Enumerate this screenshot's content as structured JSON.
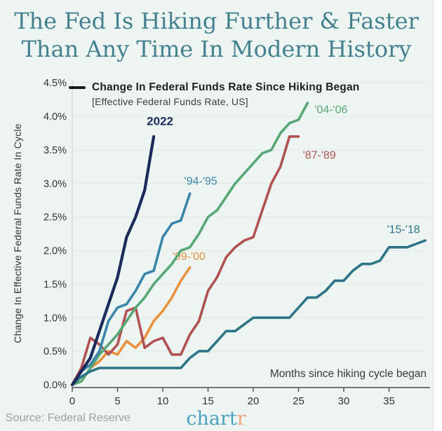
{
  "title": {
    "line1": "The Fed Is Hiking Further & Faster",
    "line2": "Than Any Time In Modern History",
    "color": "#45808f"
  },
  "legend": {
    "marker_color": "#181818",
    "label": "Change In Federal Funds Rate Since Hiking Began",
    "sublabel": "[Effective Federal Funds Rate, US]"
  },
  "footer": {
    "source": "Source: Federal Reserve",
    "logo_main": "chart",
    "logo_accent": "r",
    "logo_main_color": "#4d9fc0",
    "logo_accent_color": "#f2a479"
  },
  "chart_data": {
    "type": "line",
    "title": "",
    "xlabel": "Months since hiking cycle began",
    "ylabel": "Change In Effective Federal Funds Rate In Cycle",
    "x_unit": "months since hiking began",
    "y_unit": "percentage points",
    "xlim": [
      0,
      39.5
    ],
    "ylim": [
      0,
      4.5
    ],
    "x_ticks": [
      0,
      5,
      10,
      15,
      20,
      25,
      30,
      35
    ],
    "y_ticks": [
      "0.0%",
      "0.5%",
      "1.0%",
      "1.5%",
      "2.0%",
      "2.5%",
      "3.0%",
      "3.5%",
      "4.0%",
      "4.5%"
    ],
    "grid": "horizontal",
    "background": "#edf5f2",
    "gridline_color": "#e3ebe8",
    "axis_color": "#4a4a4a",
    "series": [
      {
        "name": "'99-'00",
        "color": "#e8913f",
        "label_x": 12.9,
        "label_y": 1.86,
        "label_bold": false,
        "values": [
          0,
          0.05,
          0.25,
          0.35,
          0.5,
          0.45,
          0.65,
          0.55,
          0.7,
          0.95,
          1.1,
          1.3,
          1.55,
          1.75
        ]
      },
      {
        "name": "'87-'89",
        "color": "#b05152",
        "label_x": 27.3,
        "label_y": 3.37,
        "label_bold": false,
        "values": [
          0,
          0.25,
          0.7,
          0.6,
          0.45,
          0.6,
          1.1,
          1.15,
          0.55,
          0.65,
          0.7,
          0.45,
          0.45,
          0.75,
          0.95,
          1.4,
          1.6,
          1.9,
          2.05,
          2.15,
          2.2,
          2.6,
          3.0,
          3.25,
          3.7,
          3.7
        ]
      },
      {
        "name": "'04-'06",
        "color": "#58a877",
        "label_x": 28.6,
        "label_y": 4.05,
        "label_bold": false,
        "values": [
          0,
          0.05,
          0.25,
          0.45,
          0.6,
          0.75,
          0.95,
          1.15,
          1.3,
          1.5,
          1.65,
          1.8,
          2.0,
          2.05,
          2.25,
          2.5,
          2.6,
          2.8,
          3.0,
          3.15,
          3.3,
          3.45,
          3.5,
          3.75,
          3.9,
          3.95,
          4.2
        ]
      },
      {
        "name": "'94-'95",
        "color": "#3c85aa",
        "label_x": 14.2,
        "label_y": 2.98,
        "label_bold": false,
        "values": [
          0,
          0.2,
          0.3,
          0.5,
          0.95,
          1.15,
          1.2,
          1.4,
          1.65,
          1.7,
          2.2,
          2.4,
          2.45,
          2.85
        ]
      },
      {
        "name": "'15-'18",
        "color": "#2e7487",
        "label_x": 36.6,
        "label_y": 2.26,
        "label_bold": false,
        "values": [
          0,
          0.12,
          0.2,
          0.25,
          0.25,
          0.25,
          0.25,
          0.25,
          0.25,
          0.25,
          0.25,
          0.25,
          0.25,
          0.4,
          0.5,
          0.5,
          0.65,
          0.8,
          0.8,
          0.9,
          1.0,
          1.0,
          1.0,
          1.0,
          1.0,
          1.15,
          1.3,
          1.3,
          1.4,
          1.55,
          1.55,
          1.7,
          1.8,
          1.8,
          1.85,
          2.05,
          2.05,
          2.05,
          2.1,
          2.15
        ]
      },
      {
        "name": "2022",
        "color": "#1a2a5a",
        "label_x": 9.7,
        "label_y": 3.87,
        "label_bold": true,
        "values": [
          0,
          0.2,
          0.4,
          0.8,
          1.2,
          1.6,
          2.2,
          2.5,
          2.9,
          3.7
        ]
      }
    ]
  }
}
